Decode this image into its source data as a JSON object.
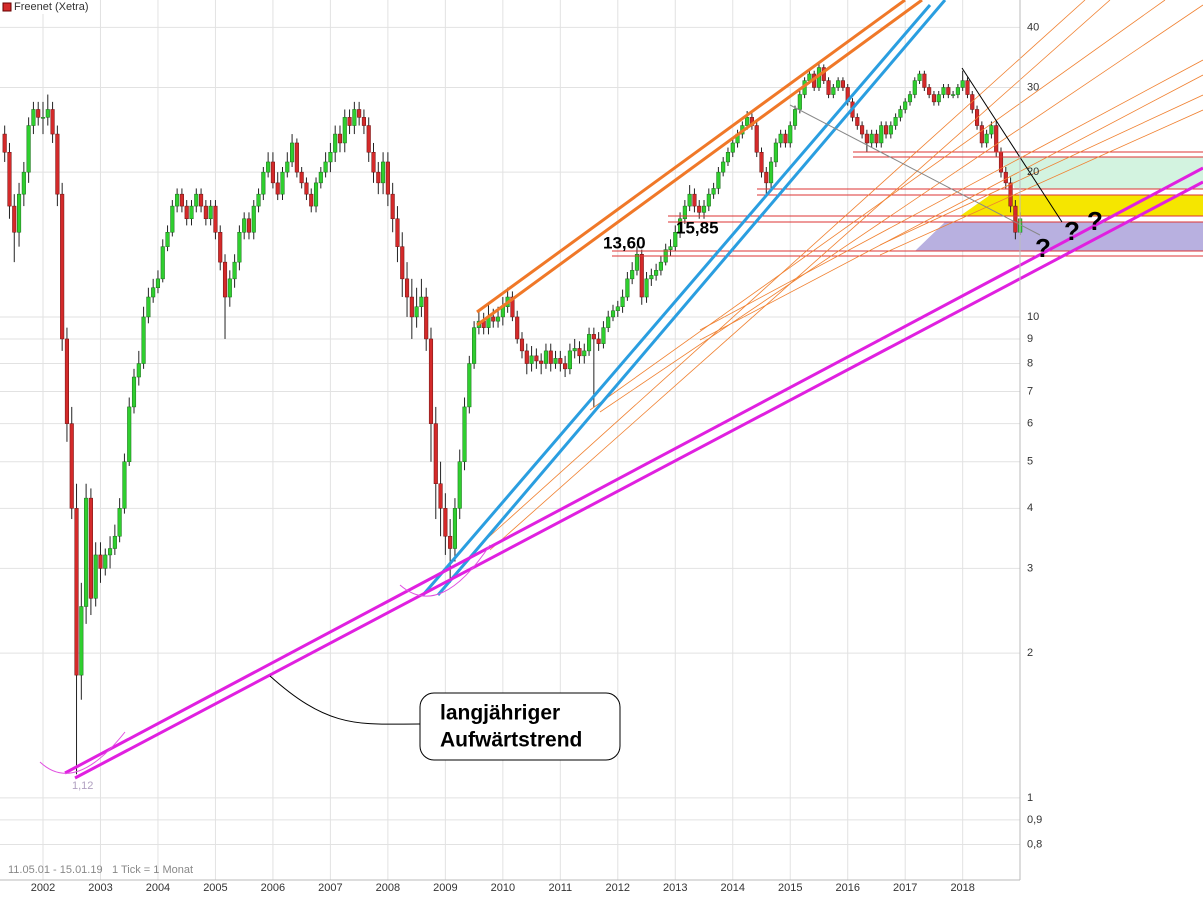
{
  "chart_data": {
    "type": "candlestick",
    "title": "Freenet (Xetra)",
    "date_range": "11.05.01 - 15.01.19",
    "tick_note": "1 Tick = 1 Monat",
    "categories": [
      null,
      null,
      null,
      null,
      null,
      null,
      null,
      null,
      "2002",
      null,
      null,
      null,
      null,
      null,
      null,
      null,
      null,
      null,
      null,
      null,
      "2003",
      null,
      null,
      null,
      null,
      null,
      null,
      null,
      null,
      null,
      null,
      null,
      "2004",
      null,
      null,
      null,
      null,
      null,
      null,
      null,
      null,
      null,
      null,
      null,
      "2005",
      null,
      null,
      null,
      null,
      null,
      null,
      null,
      null,
      null,
      null,
      null,
      "2006",
      null,
      null,
      null,
      null,
      null,
      null,
      null,
      null,
      null,
      null,
      null,
      "2007",
      null,
      null,
      null,
      null,
      null,
      null,
      null,
      null,
      null,
      null,
      null,
      "2008",
      null,
      null,
      null,
      null,
      null,
      null,
      null,
      null,
      null,
      null,
      null,
      "2009",
      null,
      null,
      null,
      null,
      null,
      null,
      null,
      null,
      null,
      null,
      null,
      "2010",
      null,
      null,
      null,
      null,
      null,
      null,
      null,
      null,
      null,
      null,
      null,
      "2011",
      null,
      null,
      null,
      null,
      null,
      null,
      null,
      null,
      null,
      null,
      null,
      "2012",
      null,
      null,
      null,
      null,
      null,
      null,
      null,
      null,
      null,
      null,
      null,
      "2013",
      null,
      null,
      null,
      null,
      null,
      null,
      null,
      null,
      null,
      null,
      null,
      "2014",
      null,
      null,
      null,
      null,
      null,
      null,
      null,
      null,
      null,
      null,
      null,
      "2015",
      null,
      null,
      null,
      null,
      null,
      null,
      null,
      null,
      null,
      null,
      null,
      "2016",
      null,
      null,
      null,
      null,
      null,
      null,
      null,
      null,
      null,
      null,
      null,
      "2017",
      null,
      null,
      null,
      null,
      null,
      null,
      null,
      null,
      null,
      null,
      null,
      "2018",
      null,
      null,
      null,
      null,
      null,
      null,
      null,
      null,
      null,
      null,
      null,
      null
    ],
    "open": [
      24,
      22,
      17,
      15,
      18,
      20,
      25,
      27,
      26,
      26,
      27,
      24,
      18,
      9,
      6,
      4,
      1.8,
      2.5,
      4.2,
      2.6,
      3.2,
      3.0,
      3.2,
      3.3,
      3.5,
      4.0,
      5.0,
      6.5,
      7.5,
      8,
      10,
      11,
      11.5,
      12,
      14,
      15,
      17,
      18,
      17,
      16,
      17,
      18,
      17,
      16,
      17,
      15,
      13,
      11,
      12,
      13,
      15,
      16,
      15,
      17,
      18,
      20,
      21,
      19,
      18,
      20,
      21,
      23,
      20,
      19,
      18,
      17,
      19,
      20,
      21,
      22,
      24,
      23,
      26,
      25,
      27,
      26,
      25,
      22,
      20,
      19,
      21,
      18,
      16,
      14,
      12,
      11,
      10,
      10.5,
      11,
      9,
      6,
      4.5,
      4,
      3.5,
      3.3,
      4,
      5,
      6.5,
      8,
      9.5,
      9.8,
      9.5,
      10,
      9.8,
      10,
      10.5,
      11,
      10,
      9,
      8.5,
      8,
      8.3,
      8.1,
      8,
      8.5,
      8,
      8.2,
      8,
      7.8,
      8.5,
      8.6,
      8.3,
      8.5,
      9.2,
      9,
      8.8,
      9.5,
      10,
      10.3,
      10.5,
      11,
      12,
      12.5,
      13.5,
      11,
      12,
      12.2,
      12.5,
      13,
      13.8,
      14,
      15,
      16,
      17,
      18,
      17,
      16.5,
      17,
      18,
      18.5,
      20,
      21,
      22,
      23,
      24,
      25,
      26,
      25,
      22,
      20,
      19,
      21,
      23,
      24,
      23,
      25,
      27,
      29,
      31,
      32,
      30,
      33,
      31,
      29,
      30,
      31,
      30,
      28,
      26,
      25,
      24,
      23,
      24,
      23,
      25,
      24,
      25,
      26,
      27,
      28,
      29,
      31,
      32,
      30,
      29,
      28,
      29,
      30,
      29,
      29,
      30,
      31,
      29,
      27,
      25,
      23,
      24,
      25,
      22,
      20,
      19,
      17,
      15
    ],
    "high": [
      25,
      23,
      18,
      19,
      21,
      26,
      28,
      28,
      28,
      29,
      28,
      25,
      19,
      9.5,
      6.5,
      4.5,
      2.8,
      4.5,
      4.4,
      3.4,
      3.4,
      3.3,
      3.5,
      3.7,
      4.2,
      5.2,
      6.8,
      7.8,
      8.5,
      10.5,
      11.5,
      12,
      12.5,
      14.5,
      15.5,
      17.5,
      18.5,
      18.5,
      17.5,
      17.5,
      18.5,
      18.5,
      17.5,
      17.5,
      17.5,
      15.5,
      13.5,
      12.5,
      13.5,
      15.5,
      16.5,
      16.5,
      17.5,
      18.5,
      20.5,
      22,
      22,
      20,
      20.5,
      22,
      24,
      23.5,
      20.5,
      19.5,
      18.5,
      19.5,
      20.5,
      22,
      23,
      25,
      25,
      27,
      27,
      28,
      28,
      27,
      26,
      23,
      21,
      22,
      22,
      19,
      17,
      15,
      13,
      12,
      11.5,
      12,
      11.5,
      9.5,
      6.5,
      5,
      4.3,
      3.8,
      4.2,
      5.3,
      6.8,
      8.3,
      9.8,
      10.3,
      10.2,
      10.6,
      10.4,
      10.5,
      11,
      11.5,
      11.3,
      10.3,
      9.3,
      8.8,
      8.7,
      8.6,
      8.4,
      8.8,
      8.8,
      8.5,
      8.5,
      8.3,
      8.8,
      9,
      8.9,
      8.8,
      9.5,
      9.5,
      9.3,
      9.8,
      10.3,
      10.6,
      10.8,
      11.4,
      12.4,
      13,
      14,
      13.8,
      12.4,
      12.6,
      12.9,
      13.4,
      14.2,
      14.5,
      15.5,
      16.5,
      17.5,
      18.8,
      18.5,
      17.5,
      17.5,
      18.5,
      19,
      20.5,
      21.5,
      22.5,
      23.5,
      24.5,
      25.5,
      26.8,
      26.5,
      25.5,
      22.5,
      20.5,
      21.5,
      23.5,
      24.5,
      24.5,
      25.5,
      27.5,
      29.5,
      31.5,
      32.5,
      32.5,
      33.8,
      33.5,
      31.5,
      30.5,
      31.5,
      31.5,
      30.5,
      28.5,
      26.5,
      25.5,
      24.5,
      24.5,
      24.5,
      25.5,
      25.5,
      25.5,
      26.5,
      27.5,
      28.5,
      29.5,
      31.5,
      32.5,
      32.5,
      30.5,
      29.5,
      29.5,
      30.5,
      30.5,
      29.5,
      30.5,
      32.5,
      31.5,
      29.5,
      27.5,
      25.5,
      24.5,
      25.5,
      25.5,
      22.5,
      20.5,
      19.5,
      17.5,
      16.5
    ],
    "low": [
      21,
      16,
      13,
      14,
      17,
      19,
      24,
      25,
      24,
      25,
      23,
      17,
      8.5,
      5.5,
      3.8,
      1.12,
      1.6,
      2.3,
      2.4,
      2.5,
      2.8,
      2.9,
      3.0,
      3.2,
      3.4,
      3.9,
      4.9,
      6.3,
      7.2,
      7.8,
      9.7,
      10.7,
      11.2,
      11.8,
      13.7,
      14.7,
      16.5,
      16.5,
      15.5,
      15.5,
      16.5,
      16.5,
      15.5,
      15.5,
      14.5,
      12.5,
      9,
      10.5,
      11.5,
      12.5,
      14.5,
      14.5,
      14.5,
      16.5,
      17.5,
      19.5,
      18.5,
      17.5,
      17.5,
      19.5,
      20.5,
      19.5,
      18.5,
      17.5,
      16.5,
      16.5,
      18.5,
      19.5,
      20,
      21,
      22,
      22,
      24,
      24,
      25,
      24,
      21,
      19,
      18,
      18,
      17,
      15,
      13,
      11,
      10,
      9,
      9.5,
      10,
      8.5,
      5,
      3.8,
      3.5,
      3.2,
      2.8,
      3.1,
      3.8,
      4.8,
      6.3,
      7.8,
      9.2,
      9.2,
      9.2,
      9.5,
      9.5,
      9.6,
      10.2,
      9.8,
      8.8,
      8.2,
      7.6,
      7.7,
      7.8,
      7.6,
      7.8,
      7.7,
      7.8,
      7.7,
      7.5,
      7.6,
      8.2,
      8,
      8,
      8.3,
      6.5,
      8.5,
      8.6,
      9.3,
      9.8,
      10,
      10.2,
      10.8,
      11.7,
      12.2,
      10.6,
      10.7,
      11.6,
      11.9,
      12.2,
      12.8,
      13.4,
      13.7,
      14.6,
      15.6,
      16.6,
      16.5,
      16,
      16,
      16.6,
      17.6,
      18,
      19.6,
      20.6,
      21.5,
      22.5,
      23.5,
      24.5,
      24.5,
      21.5,
      19.5,
      18,
      18.5,
      20.5,
      22.5,
      22.5,
      22.5,
      24.5,
      26.5,
      28.5,
      30.5,
      29.5,
      29.5,
      30.5,
      28.5,
      28.5,
      29.5,
      29.5,
      27.5,
      25.5,
      24.5,
      23.5,
      22,
      22.5,
      22.5,
      22.5,
      23.5,
      23.5,
      24.5,
      25.5,
      26.5,
      27.5,
      28.5,
      30.5,
      29.5,
      28.5,
      27.5,
      27.5,
      28.5,
      28.5,
      28.5,
      28.5,
      29.5,
      28.5,
      26.5,
      24.5,
      22.5,
      22.5,
      23.5,
      21.5,
      19.5,
      18.5,
      16.5,
      14.5,
      14.8
    ],
    "close": [
      22,
      17,
      15,
      18,
      20,
      25,
      27,
      26,
      26,
      27,
      24,
      18,
      9,
      6,
      4,
      1.8,
      2.5,
      4.2,
      2.6,
      3.2,
      3.0,
      3.2,
      3.3,
      3.5,
      4.0,
      5.0,
      6.5,
      7.5,
      8,
      10,
      11,
      11.5,
      12,
      14,
      15,
      17,
      18,
      17,
      16,
      17,
      18,
      17,
      16,
      17,
      15,
      13,
      11,
      12,
      13,
      15,
      16,
      15,
      17,
      18,
      20,
      21,
      19,
      18,
      20,
      21,
      23,
      20,
      19,
      18,
      17,
      19,
      20,
      21,
      22,
      24,
      23,
      26,
      25,
      27,
      26,
      25,
      22,
      20,
      19,
      21,
      18,
      16,
      14,
      12,
      11,
      10,
      10.5,
      11,
      9,
      6,
      4.5,
      4,
      3.5,
      3.3,
      4,
      5,
      6.5,
      8,
      9.5,
      9.8,
      9.5,
      10,
      9.8,
      10,
      10.5,
      11,
      10,
      9,
      8.5,
      8,
      8.3,
      8.1,
      8,
      8.5,
      8,
      8.2,
      8,
      7.8,
      8.5,
      8.6,
      8.3,
      8.5,
      9.2,
      9,
      8.8,
      9.5,
      10,
      10.3,
      10.5,
      11,
      12,
      12.5,
      13.5,
      11,
      12,
      12.2,
      12.5,
      13,
      13.8,
      14,
      15,
      16,
      17,
      18,
      17,
      16.5,
      17,
      18,
      18.5,
      20,
      21,
      22,
      23,
      24,
      25,
      26,
      25,
      22,
      20,
      19,
      21,
      23,
      24,
      23,
      25,
      27,
      29,
      31,
      32,
      30,
      33,
      31,
      29,
      30,
      31,
      30,
      28,
      26,
      25,
      24,
      23,
      24,
      23,
      25,
      24,
      25,
      26,
      27,
      28,
      29,
      31,
      32,
      30,
      29,
      28,
      29,
      30,
      29,
      29,
      30,
      31,
      29,
      27,
      25,
      23,
      24,
      25,
      22,
      20,
      19,
      17,
      15,
      16
    ],
    "up_color": "#2fcf2f",
    "down_color": "#d42a2a",
    "ylim": [
      0.675,
      45.6
    ],
    "log_scale": true,
    "grid": true,
    "yticks": [
      40,
      30,
      20,
      10,
      9,
      8,
      7,
      6,
      5,
      4,
      3,
      2,
      1,
      {
        "value": 0.9,
        "label": "0,9"
      },
      {
        "value": 0.8,
        "label": "0,8"
      }
    ],
    "annotations": [
      "13,60",
      "15,85",
      "1,12",
      "?",
      "?",
      "?",
      "langjähriger",
      "Aufwärtstrend"
    ]
  }
}
